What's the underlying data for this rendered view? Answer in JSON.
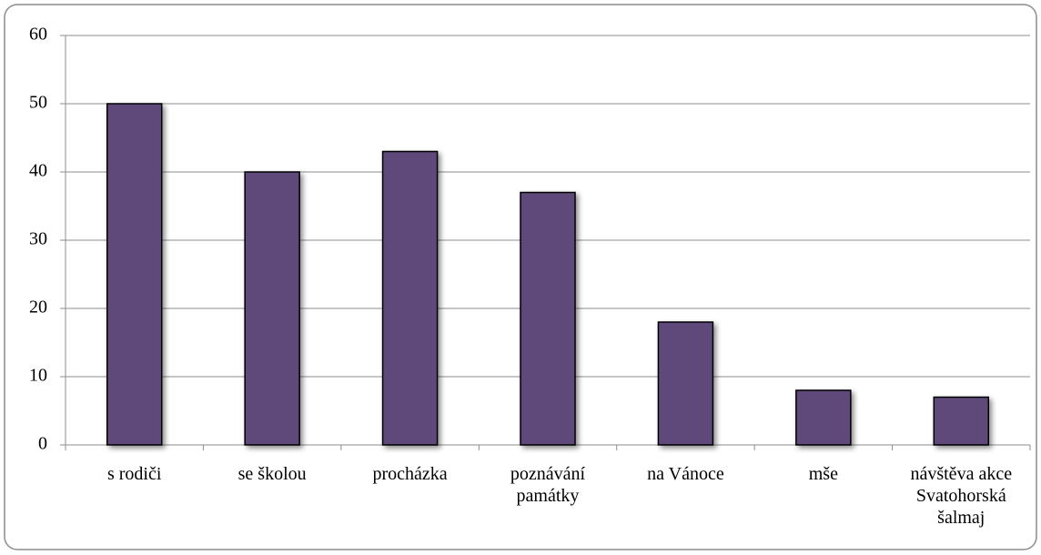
{
  "chart_data": {
    "type": "bar",
    "categories": [
      "s rodiči",
      "se školou",
      "procházka",
      "poznávání památky",
      "na Vánoce",
      "mše",
      "návštěva akce Svatohorská šalmaj"
    ],
    "values": [
      50,
      40,
      43,
      37,
      18,
      8,
      7
    ],
    "color": "#5f497a",
    "ylim": [
      0,
      60
    ],
    "yticks": [
      0,
      10,
      20,
      30,
      40,
      50,
      60
    ],
    "grid": true
  }
}
